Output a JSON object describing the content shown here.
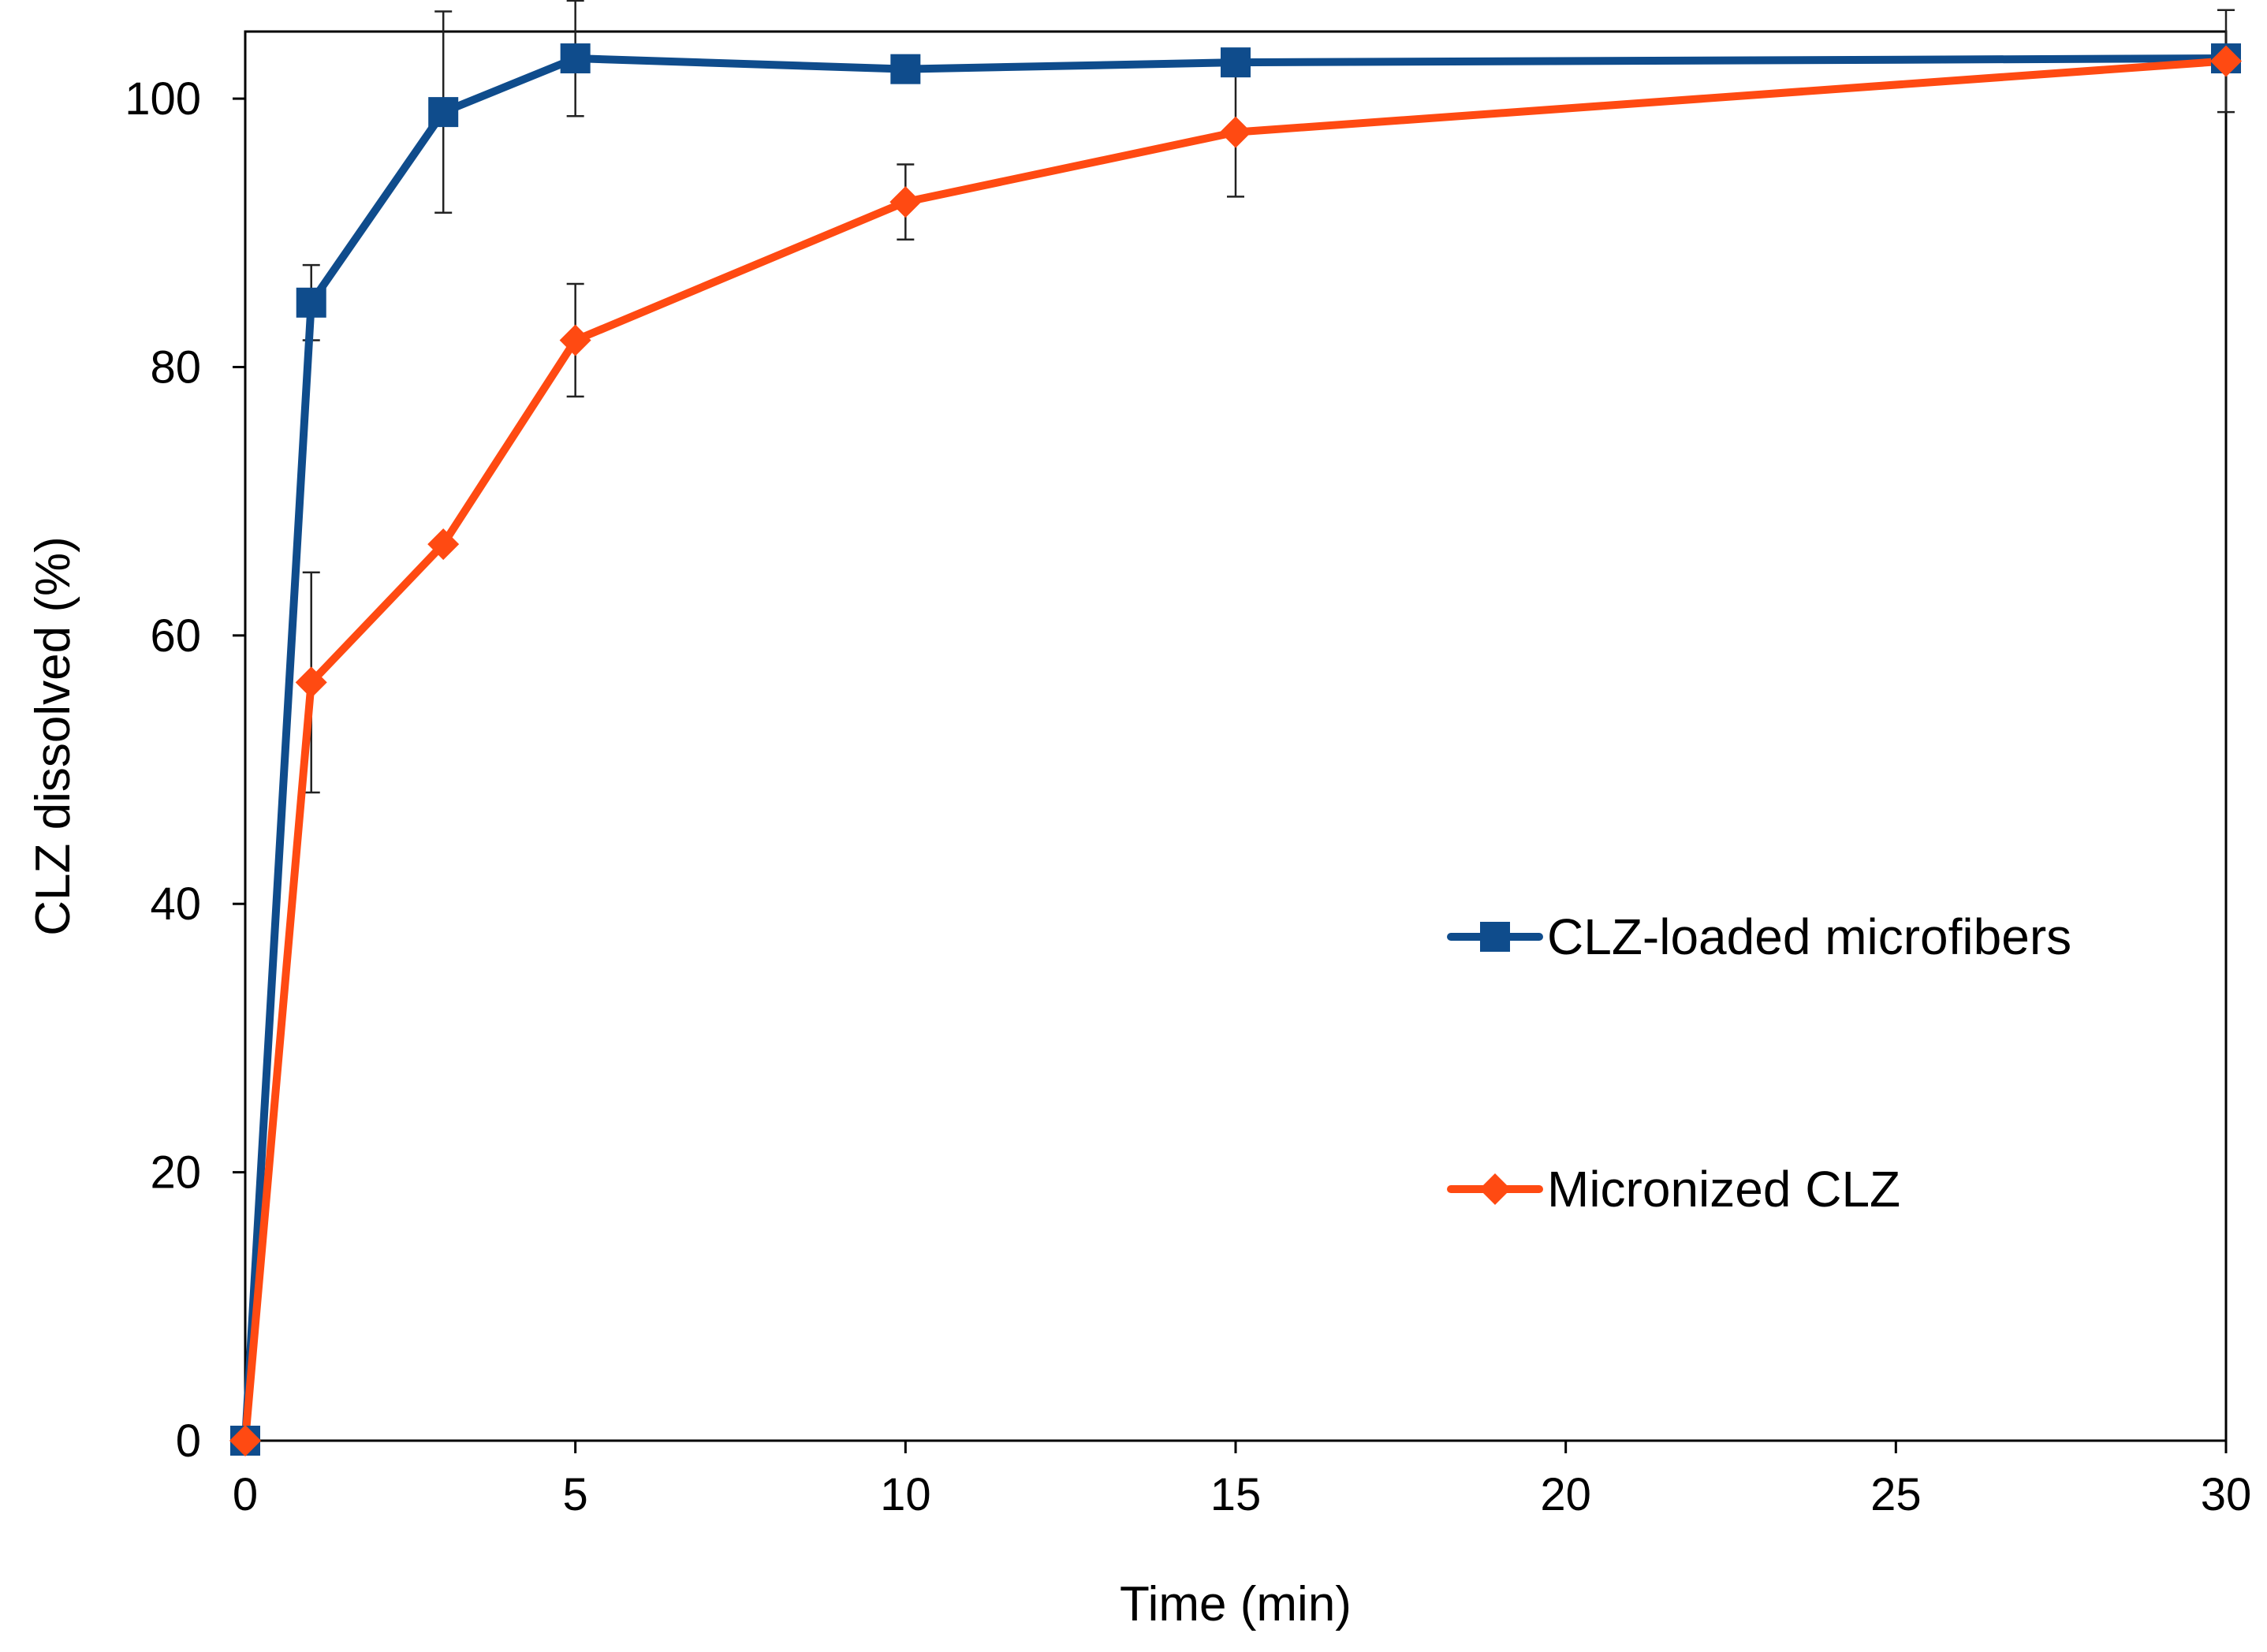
{
  "chart_data": {
    "type": "line",
    "title": "",
    "xlabel": "Time (min)",
    "ylabel": "CLZ dissolved (%)",
    "xlim": [
      0,
      30
    ],
    "ylim": [
      0,
      105
    ],
    "xticks": [
      0,
      5,
      10,
      15,
      20,
      25,
      30
    ],
    "yticks": [
      0,
      20,
      40,
      60,
      80,
      100
    ],
    "grid": false,
    "legend_position": "right-middle",
    "series": [
      {
        "name": "CLZ-loaded microfibers",
        "color": "#0F4C8C",
        "marker": "square",
        "x": [
          0,
          1,
          3,
          5,
          10,
          15,
          30
        ],
        "y": [
          0,
          84.8,
          99.0,
          103.0,
          102.2,
          102.7,
          103.0
        ],
        "error": [
          0,
          2.8,
          7.5,
          4.3,
          0,
          0,
          0
        ]
      },
      {
        "name": "Micronized CLZ",
        "color": "#FF4A12",
        "marker": "diamond",
        "x": [
          0,
          1,
          3,
          5,
          10,
          15,
          30
        ],
        "y": [
          0,
          56.5,
          66.8,
          82.0,
          92.3,
          97.5,
          102.8
        ],
        "error": [
          0,
          8.2,
          0,
          4.2,
          2.8,
          4.8,
          3.8
        ]
      }
    ]
  }
}
